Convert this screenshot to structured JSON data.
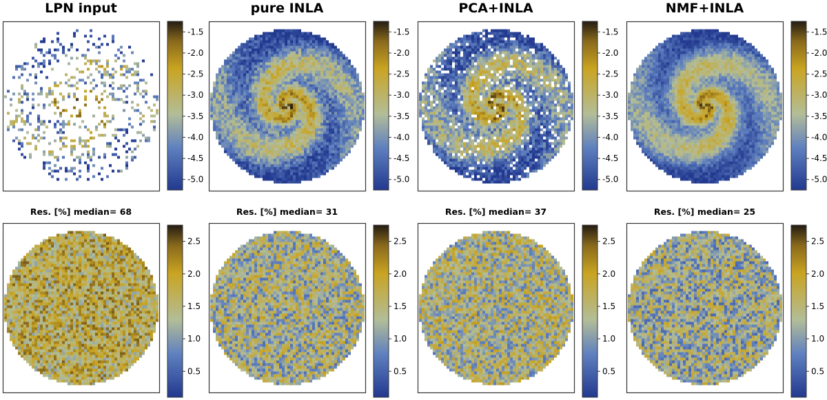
{
  "chart_data": [
    {
      "type": "heatmap",
      "title": "LPN input",
      "panel": "top",
      "pattern": "sparse",
      "colorbar": {
        "ticks": [
          "-1.5",
          "-2.0",
          "-2.5",
          "-3.0",
          "-3.5",
          "-4.0",
          "-4.5",
          "-5.0"
        ],
        "range": [
          -5.25,
          -1.25
        ]
      }
    },
    {
      "type": "heatmap",
      "title": "pure INLA",
      "panel": "top",
      "pattern": "spiral",
      "colorbar": {
        "ticks": [
          "-1.5",
          "-2.0",
          "-2.5",
          "-3.0",
          "-3.5",
          "-4.0",
          "-4.5",
          "-5.0"
        ],
        "range": [
          -5.25,
          -1.25
        ]
      }
    },
    {
      "type": "heatmap",
      "title": "PCA+INLA",
      "panel": "top",
      "pattern": "spiral-noisy",
      "colorbar": {
        "ticks": [
          "-1.5",
          "-2.0",
          "-2.5",
          "-3.0",
          "-3.5",
          "-4.0",
          "-4.5",
          "-5.0"
        ],
        "range": [
          -5.25,
          -1.25
        ]
      }
    },
    {
      "type": "heatmap",
      "title": "NMF+INLA",
      "panel": "top",
      "pattern": "spiral-smooth",
      "colorbar": {
        "ticks": [
          "-1.5",
          "-2.0",
          "-2.5",
          "-3.0",
          "-3.5",
          "-4.0",
          "-4.5",
          "-5.0"
        ],
        "range": [
          -5.25,
          -1.25
        ]
      }
    },
    {
      "type": "heatmap",
      "title": "Res. [%] median= 68",
      "panel": "bottom",
      "median": 68,
      "colorbar": {
        "ticks": [
          "2.5",
          "2.0",
          "1.5",
          "1.0",
          "0.5"
        ],
        "range": [
          0.1,
          2.75
        ]
      }
    },
    {
      "type": "heatmap",
      "title": "Res. [%]  median= 31",
      "panel": "bottom",
      "median": 31,
      "colorbar": {
        "ticks": [
          "2.5",
          "2.0",
          "1.5",
          "1.0",
          "0.5"
        ],
        "range": [
          0.1,
          2.75
        ]
      }
    },
    {
      "type": "heatmap",
      "title": "Res. [%]  median= 37",
      "panel": "bottom",
      "median": 37,
      "colorbar": {
        "ticks": [
          "2.5",
          "2.0",
          "1.5",
          "1.0",
          "0.5"
        ],
        "range": [
          0.1,
          2.75
        ]
      }
    },
    {
      "type": "heatmap",
      "title": "Res. [%]  median= 25",
      "panel": "bottom",
      "median": 25,
      "colorbar": {
        "ticks": [
          "2.5",
          "2.0",
          "1.5",
          "1.0",
          "0.5"
        ],
        "range": [
          0.1,
          2.75
        ]
      }
    }
  ],
  "colors": {
    "low": "#22398f",
    "mid_low": "#6e8fc4",
    "mid": "#b5b98a",
    "mid_high": "#c9a421",
    "high": "#2a2114",
    "frame": "#333333"
  }
}
